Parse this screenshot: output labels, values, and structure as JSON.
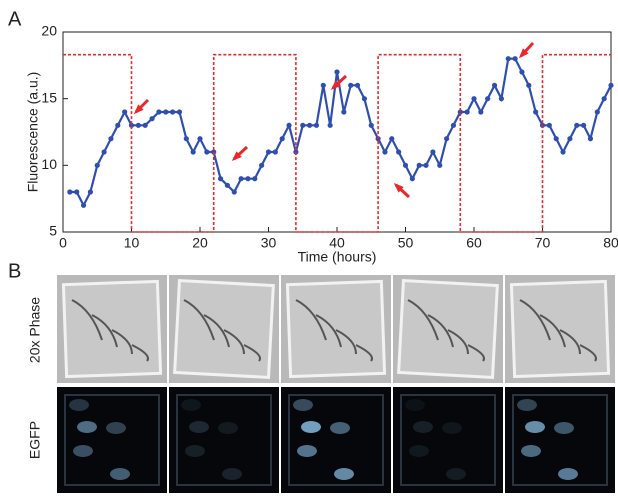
{
  "panel_labels": [
    "A",
    "B"
  ],
  "chart_data": {
    "type": "line",
    "xlabel": "Time (hours)",
    "ylabel": "Fluorescence (a.u.)",
    "xlim": [
      0,
      80
    ],
    "ylim": [
      5,
      20
    ],
    "xticks": [
      0,
      10,
      20,
      30,
      40,
      50,
      60,
      70,
      80
    ],
    "yticks": [
      5,
      10,
      15,
      20
    ],
    "series": [
      {
        "color": "#2f4fb0",
        "style": "solid",
        "markers": true,
        "x": [
          1,
          2,
          3,
          4,
          5,
          6,
          7,
          8,
          9,
          10,
          11,
          12,
          13,
          14,
          15,
          16,
          17,
          18,
          19,
          20,
          21,
          22,
          23,
          24,
          25,
          26,
          27,
          28,
          29,
          30,
          31,
          32,
          33,
          34,
          35,
          36,
          37,
          38,
          39,
          40,
          41,
          42,
          43,
          44,
          45,
          46,
          47,
          48,
          49,
          50,
          51,
          52,
          53,
          54,
          55,
          56,
          57,
          58,
          59,
          60,
          61,
          62,
          63,
          64,
          65,
          66,
          67,
          68,
          69,
          70,
          71,
          72,
          73,
          74,
          75,
          76,
          77,
          78,
          79,
          80
        ],
        "values": [
          8,
          8,
          7,
          8,
          10,
          11,
          12,
          13,
          14,
          13,
          13,
          13,
          13.5,
          14,
          14,
          14,
          14,
          12,
          11,
          12,
          11,
          11,
          9,
          8.5,
          8,
          9,
          9,
          9,
          10,
          11,
          11,
          12,
          13,
          11,
          13,
          13,
          13,
          16,
          13,
          17,
          14,
          16,
          16,
          15,
          13,
          12,
          11,
          12,
          11,
          10,
          9,
          10,
          10,
          11,
          10,
          12,
          13,
          14,
          14,
          15,
          14,
          15,
          16,
          15,
          18,
          18,
          17,
          16,
          14,
          13,
          13,
          12,
          11,
          12,
          13,
          13,
          12,
          14,
          15,
          16
        ]
      },
      {
        "color": "#e8282b",
        "style": "dashed",
        "markers": false,
        "x": [
          0,
          10,
          10,
          22,
          22,
          34,
          34,
          46,
          46,
          58,
          58,
          70,
          70,
          80
        ],
        "values": [
          18.3,
          18.3,
          5,
          5,
          18.3,
          18.3,
          5,
          5,
          18.3,
          18.3,
          5,
          5,
          18.3,
          18.3
        ]
      }
    ]
  },
  "row_labels": [
    "20x Phase",
    "EGFP"
  ]
}
